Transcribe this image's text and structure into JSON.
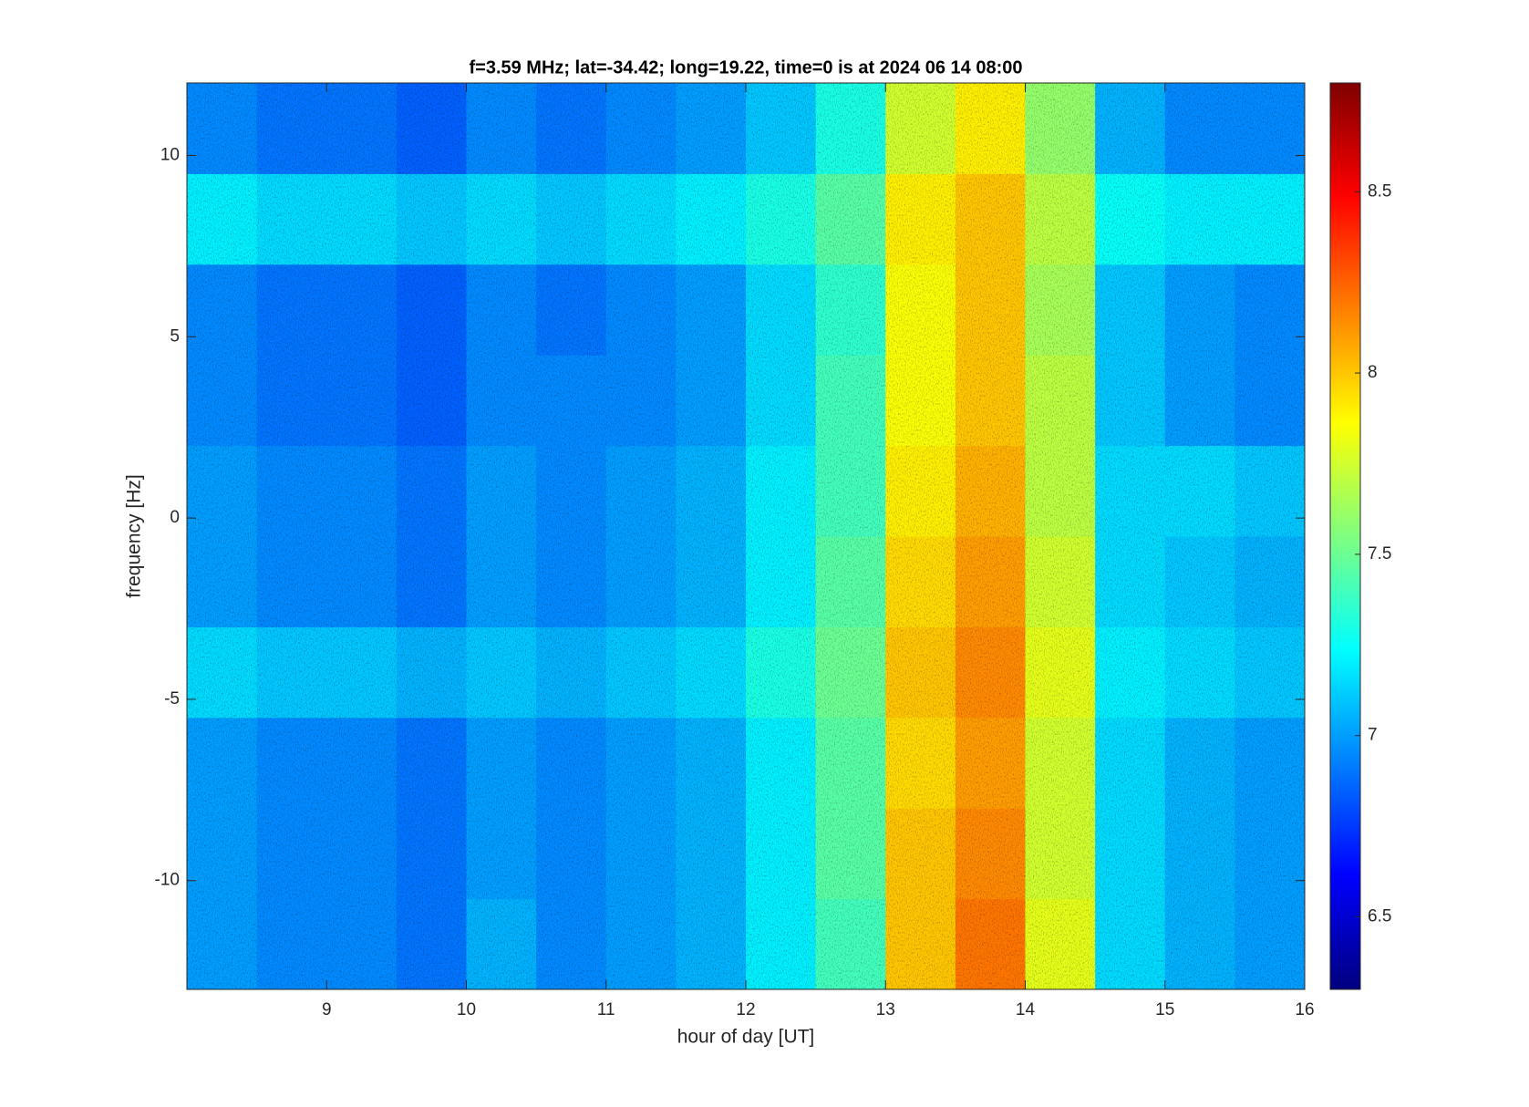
{
  "chart_data": {
    "type": "heatmap",
    "title": "f=3.59 MHz;  lat=-34.42; long=19.22, time=0 is at 2024 06 14 08:00",
    "x_label": "hour of day [UT]",
    "y_label": "frequency [Hz]",
    "x_bins": [
      8,
      8.5,
      9,
      9.5,
      10,
      10.5,
      11,
      11.5,
      12,
      12.5,
      13,
      13.5,
      14,
      14.5,
      15,
      15.5,
      16
    ],
    "y_bins": [
      -13,
      -10.5,
      -8,
      -5.5,
      -3,
      -0.5,
      2,
      4.5,
      7,
      9.5,
      12
    ],
    "values": [
      [
        7.0,
        6.95,
        6.95,
        6.9,
        7.05,
        6.95,
        7.0,
        7.05,
        7.2,
        7.4,
        8.0,
        8.2,
        7.8,
        7.15,
        7.05,
        7.0
      ],
      [
        7.0,
        6.95,
        6.95,
        6.9,
        7.0,
        6.95,
        7.0,
        7.05,
        7.2,
        7.45,
        8.0,
        8.15,
        7.75,
        7.15,
        7.05,
        7.0
      ],
      [
        7.0,
        6.95,
        6.95,
        6.9,
        7.0,
        6.95,
        7.0,
        7.05,
        7.2,
        7.45,
        7.95,
        8.1,
        7.75,
        7.15,
        7.05,
        7.0
      ],
      [
        7.15,
        7.1,
        7.1,
        7.05,
        7.1,
        7.05,
        7.1,
        7.15,
        7.3,
        7.5,
        8.0,
        8.15,
        7.8,
        7.2,
        7.15,
        7.1
      ],
      [
        7.0,
        6.95,
        6.95,
        6.9,
        7.0,
        6.95,
        7.0,
        7.05,
        7.2,
        7.45,
        7.95,
        8.1,
        7.75,
        7.15,
        7.1,
        7.05
      ],
      [
        7.0,
        6.95,
        6.95,
        6.9,
        7.0,
        6.95,
        7.0,
        7.05,
        7.2,
        7.4,
        7.9,
        8.05,
        7.7,
        7.15,
        7.15,
        7.1
      ],
      [
        6.95,
        6.9,
        6.9,
        6.85,
        6.95,
        6.95,
        6.95,
        7.0,
        7.15,
        7.4,
        7.85,
        8.0,
        7.7,
        7.1,
        7.0,
        6.95
      ],
      [
        6.95,
        6.9,
        6.9,
        6.85,
        6.95,
        6.9,
        6.95,
        7.0,
        7.15,
        7.35,
        7.85,
        8.0,
        7.65,
        7.1,
        7.0,
        6.95
      ],
      [
        7.2,
        7.15,
        7.15,
        7.1,
        7.15,
        7.1,
        7.15,
        7.2,
        7.3,
        7.45,
        7.9,
        8.0,
        7.7,
        7.25,
        7.2,
        7.2
      ],
      [
        6.95,
        6.9,
        6.9,
        6.85,
        6.95,
        6.9,
        6.95,
        7.0,
        7.1,
        7.3,
        7.75,
        7.9,
        7.6,
        7.05,
        6.95,
        6.95
      ]
    ],
    "colormap": "jet",
    "xlim": [
      8,
      16
    ],
    "xticks": [
      9,
      10,
      11,
      12,
      13,
      14,
      15,
      16
    ],
    "ylim": [
      -13,
      12
    ],
    "yticks": [
      -10,
      -5,
      0,
      5,
      10
    ],
    "clim": [
      6.3,
      8.8
    ],
    "cticks": [
      6.5,
      7,
      7.5,
      8,
      8.5
    ]
  }
}
